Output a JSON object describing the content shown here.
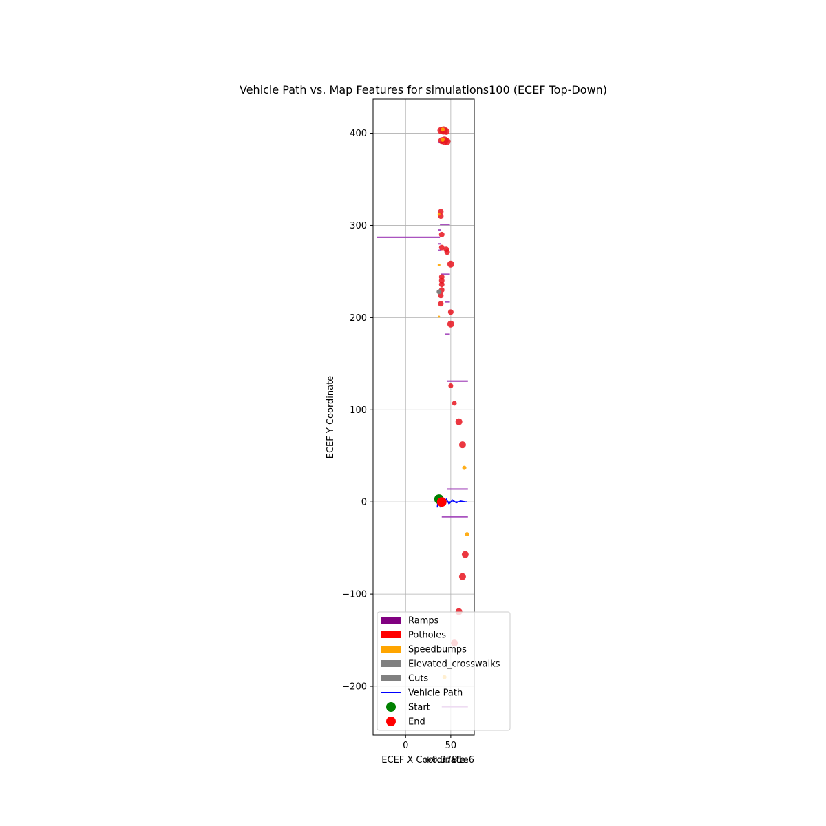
{
  "chart_data": {
    "type": "scatter",
    "title": "Vehicle Path vs. Map Features for simulations100 (ECEF Top-Down)",
    "xlabel": "ECEF X Coordinate",
    "ylabel": "ECEF Y Coordinate",
    "x_offset_label": "+6.3781e6",
    "xlim": [
      -36,
      76
    ],
    "ylim": [
      -253,
      437
    ],
    "xticks": [
      0,
      50
    ],
    "yticks": [
      -200,
      -100,
      0,
      100,
      200,
      300,
      400
    ],
    "grid": true,
    "legend_position": "lower-right",
    "colors": {
      "ramps": "#a040b8",
      "potholes": "#e8141e",
      "speedbumps": "#ffa500",
      "elevated_crosswalks": "#808080",
      "cuts": "#808080",
      "path": "#0000ff",
      "start": "#008000",
      "end": "#ff0000"
    },
    "legend": [
      {
        "label": "Ramps",
        "kind": "patch",
        "color": "#800080"
      },
      {
        "label": "Potholes",
        "kind": "patch",
        "color": "#ff0000"
      },
      {
        "label": "Speedbumps",
        "kind": "patch",
        "color": "#ffa500"
      },
      {
        "label": "Elevated_crosswalks",
        "kind": "patch",
        "color": "#808080"
      },
      {
        "label": "Cuts",
        "kind": "patch",
        "color": "#808080"
      },
      {
        "label": "Vehicle Path",
        "kind": "line",
        "color": "#0000ff"
      },
      {
        "label": "Start",
        "kind": "marker",
        "color": "#008000"
      },
      {
        "label": "End",
        "kind": "marker",
        "color": "#ff0000"
      }
    ],
    "ramps": [
      {
        "x1": -32,
        "x2": 38,
        "y": 287
      },
      {
        "x1": 38,
        "x2": 49,
        "y": 301
      },
      {
        "x1": 36,
        "x2": 39,
        "y": 295
      },
      {
        "x1": 36,
        "x2": 39,
        "y": 280
      },
      {
        "x1": 36,
        "x2": 39,
        "y": 273
      },
      {
        "x1": 39,
        "x2": 49,
        "y": 247
      },
      {
        "x1": 44,
        "x2": 49,
        "y": 217
      },
      {
        "x1": 44,
        "x2": 49,
        "y": 182
      },
      {
        "x1": 46,
        "x2": 69,
        "y": 131
      },
      {
        "x1": 46,
        "x2": 69,
        "y": 14
      },
      {
        "x1": 40,
        "x2": 69,
        "y": -16
      },
      {
        "x1": 40,
        "x2": 69,
        "y": -222
      },
      {
        "x1": 36,
        "x2": 42,
        "y": 390
      }
    ],
    "potholes": [
      {
        "x": 39,
        "y": 403,
        "r": 5
      },
      {
        "x": 42,
        "y": 403,
        "r": 6
      },
      {
        "x": 45,
        "y": 402,
        "r": 5
      },
      {
        "x": 40,
        "y": 392,
        "r": 5
      },
      {
        "x": 43,
        "y": 392,
        "r": 6
      },
      {
        "x": 46,
        "y": 391,
        "r": 5
      },
      {
        "x": 39,
        "y": 315,
        "r": 4
      },
      {
        "x": 39,
        "y": 310,
        "r": 4
      },
      {
        "x": 40,
        "y": 290,
        "r": 4
      },
      {
        "x": 40,
        "y": 276,
        "r": 4
      },
      {
        "x": 45,
        "y": 274,
        "r": 4
      },
      {
        "x": 46,
        "y": 271,
        "r": 4
      },
      {
        "x": 50,
        "y": 258,
        "r": 5
      },
      {
        "x": 40,
        "y": 244,
        "r": 4
      },
      {
        "x": 40,
        "y": 240,
        "r": 4
      },
      {
        "x": 40,
        "y": 236,
        "r": 4
      },
      {
        "x": 40,
        "y": 230,
        "r": 4
      },
      {
        "x": 39,
        "y": 224,
        "r": 4
      },
      {
        "x": 39,
        "y": 215,
        "r": 4
      },
      {
        "x": 50,
        "y": 206,
        "r": 4
      },
      {
        "x": 50,
        "y": 193,
        "r": 5
      },
      {
        "x": 50,
        "y": 126,
        "r": 3.5
      },
      {
        "x": 54,
        "y": 107,
        "r": 3.5
      },
      {
        "x": 59,
        "y": 87,
        "r": 5
      },
      {
        "x": 63,
        "y": 62,
        "r": 5
      },
      {
        "x": 66,
        "y": -57,
        "r": 5
      },
      {
        "x": 63,
        "y": -81,
        "r": 5
      },
      {
        "x": 59,
        "y": -119,
        "r": 5
      },
      {
        "x": 54,
        "y": -153,
        "r": 5
      }
    ],
    "speedbumps": [
      {
        "x": 41,
        "y": 404,
        "r": 3
      },
      {
        "x": 41,
        "y": 393,
        "r": 3
      },
      {
        "x": 37,
        "y": 312,
        "r": 2
      },
      {
        "x": 37,
        "y": 257,
        "r": 2
      },
      {
        "x": 37,
        "y": 201,
        "r": 1.5
      },
      {
        "x": 65,
        "y": 37,
        "r": 3
      },
      {
        "x": 68,
        "y": -35,
        "r": 3
      },
      {
        "x": 43,
        "y": -190,
        "r": 3
      }
    ],
    "elevated_crosswalks": [
      {
        "x": 37,
        "y": 228,
        "r": 3.5
      }
    ],
    "path": [
      [
        35,
        -6
      ],
      [
        36,
        3
      ],
      [
        38,
        -4
      ],
      [
        40,
        4
      ],
      [
        42,
        -3
      ],
      [
        45,
        3
      ],
      [
        48,
        -2
      ],
      [
        52,
        2
      ],
      [
        56,
        -1
      ],
      [
        61,
        1
      ],
      [
        66,
        0
      ],
      [
        68,
        0
      ],
      [
        40,
        0
      ]
    ],
    "start": {
      "x": 37,
      "y": 3
    },
    "end": {
      "x": 40,
      "y": 0
    }
  }
}
